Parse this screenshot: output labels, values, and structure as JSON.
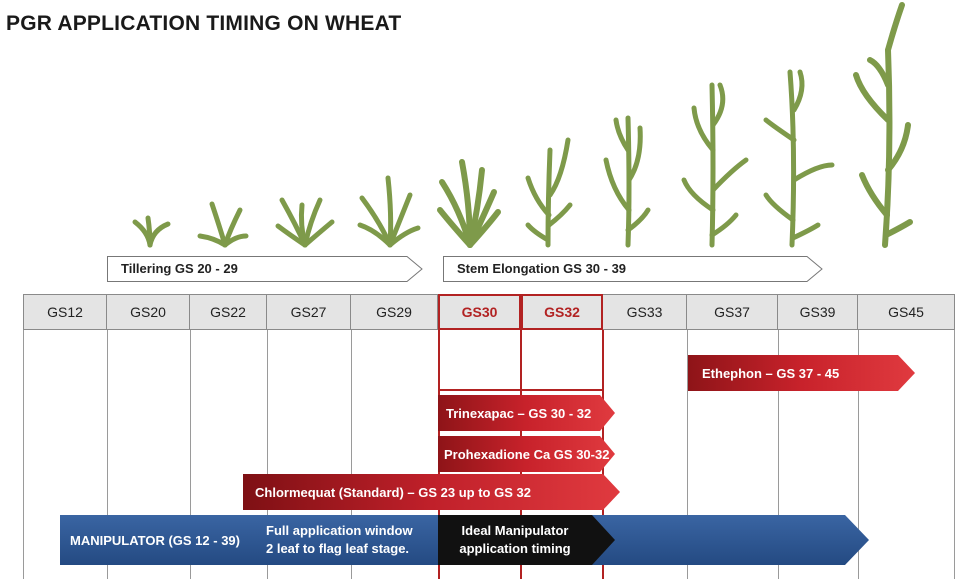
{
  "title": "PGR APPLICATION TIMING ON WHEAT",
  "phases": [
    {
      "label": "Tillering GS 20 - 29"
    },
    {
      "label": "Stem Elongation GS 30 - 39"
    }
  ],
  "growth_stages": [
    "GS12",
    "GS20",
    "GS22",
    "GS27",
    "GS29",
    "GS30",
    "GS32",
    "GS33",
    "GS37",
    "GS39",
    "GS45"
  ],
  "highlighted_stages": [
    "GS30",
    "GS32"
  ],
  "treatments": [
    {
      "label": "Ethephon – GS 37 - 45"
    },
    {
      "label": "Trinexapac – GS 30 - 32"
    },
    {
      "label": "Prohexadione Ca GS 30-32"
    },
    {
      "label": "Chlormequat (Standard) – GS 23 up to GS 32"
    }
  ],
  "manipulator": {
    "label": "MANIPULATOR (GS 12 - 39)",
    "window_line1": "Full application window",
    "window_line2": "2 leaf to flag leaf stage.",
    "ideal_line1": "Ideal Manipulator",
    "ideal_line2": "application timing"
  },
  "colors": {
    "red_bar": "#c0202a",
    "blue_bar": "#2e5590",
    "black_bar": "#111111",
    "highlight": "#b22222",
    "plant": "#7e9a4a"
  }
}
